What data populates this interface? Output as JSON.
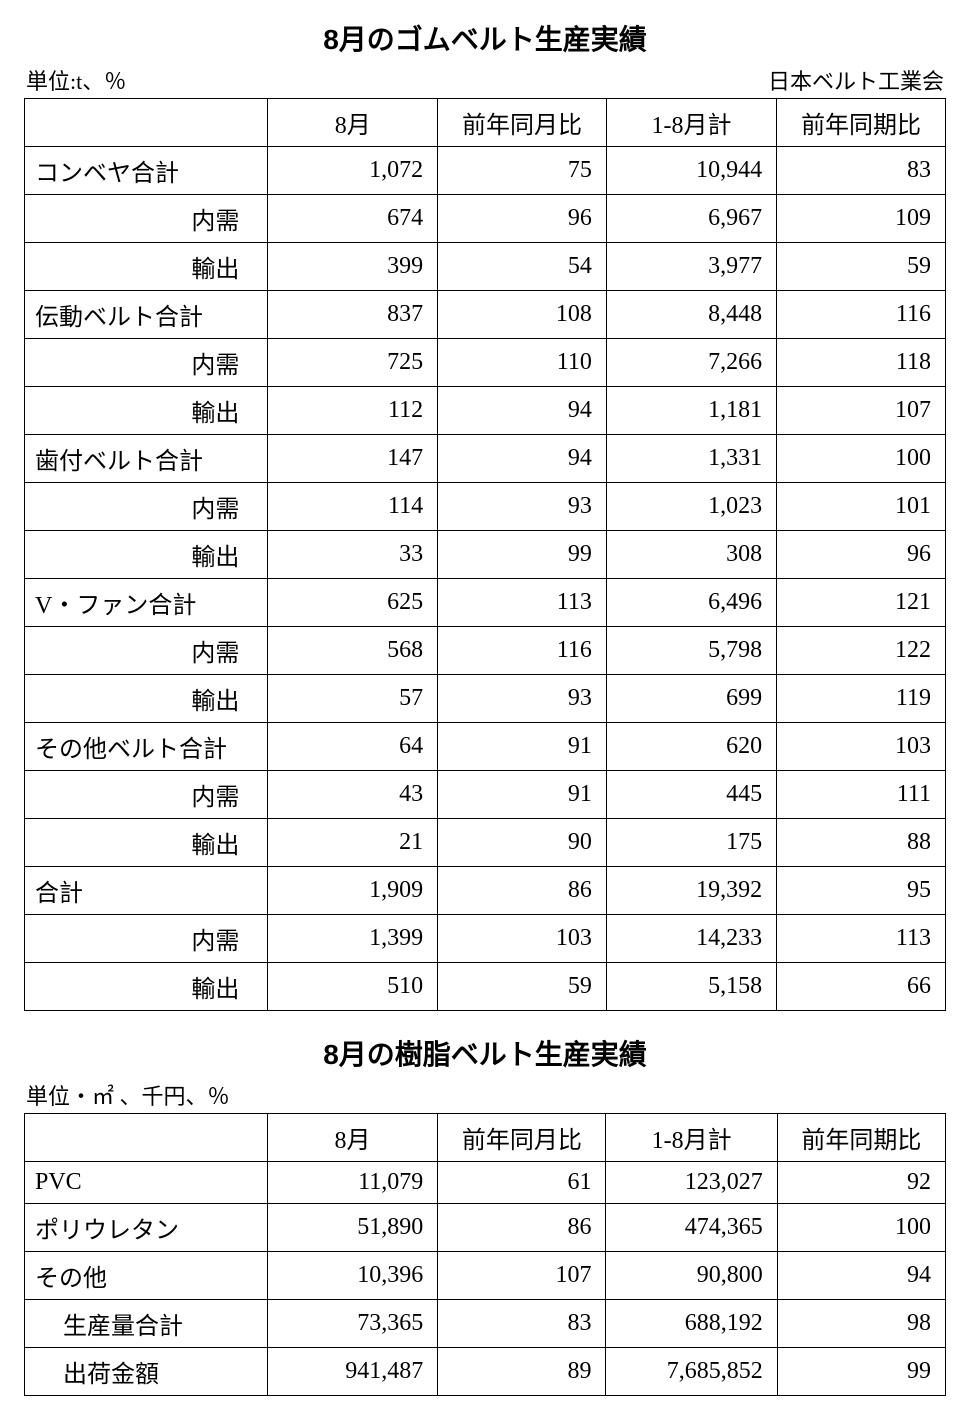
{
  "table1": {
    "title": "8月のゴムベルト生産実績",
    "unit": "単位:t、％",
    "source": "日本ベルト工業会",
    "columns": [
      "",
      "8月",
      "前年同月比",
      "1-8月計",
      "前年同期比"
    ],
    "rows": [
      {
        "label": "コンベヤ合計",
        "cls": "label-main",
        "vals": [
          "1,072",
          "75",
          "10,944",
          "83"
        ]
      },
      {
        "label": "内需",
        "cls": "label-sub",
        "vals": [
          "674",
          "96",
          "6,967",
          "109"
        ]
      },
      {
        "label": "輸出",
        "cls": "label-sub",
        "vals": [
          "399",
          "54",
          "3,977",
          "59"
        ]
      },
      {
        "label": "伝動ベルト合計",
        "cls": "label-main",
        "vals": [
          "837",
          "108",
          "8,448",
          "116"
        ]
      },
      {
        "label": "内需",
        "cls": "label-sub",
        "vals": [
          "725",
          "110",
          "7,266",
          "118"
        ]
      },
      {
        "label": "輸出",
        "cls": "label-sub",
        "vals": [
          "112",
          "94",
          "1,181",
          "107"
        ]
      },
      {
        "label": "歯付ベルト合計",
        "cls": "label-main",
        "vals": [
          "147",
          "94",
          "1,331",
          "100"
        ]
      },
      {
        "label": "内需",
        "cls": "label-sub",
        "vals": [
          "114",
          "93",
          "1,023",
          "101"
        ]
      },
      {
        "label": "輸出",
        "cls": "label-sub",
        "vals": [
          "33",
          "99",
          "308",
          "96"
        ]
      },
      {
        "label": "V・ファン合計",
        "cls": "label-main",
        "vals": [
          "625",
          "113",
          "6,496",
          "121"
        ]
      },
      {
        "label": "内需",
        "cls": "label-sub",
        "vals": [
          "568",
          "116",
          "5,798",
          "122"
        ]
      },
      {
        "label": "輸出",
        "cls": "label-sub",
        "vals": [
          "57",
          "93",
          "699",
          "119"
        ]
      },
      {
        "label": "その他ベルト合計",
        "cls": "label-main",
        "vals": [
          "64",
          "91",
          "620",
          "103"
        ]
      },
      {
        "label": "内需",
        "cls": "label-sub",
        "vals": [
          "43",
          "91",
          "445",
          "111"
        ]
      },
      {
        "label": "輸出",
        "cls": "label-sub",
        "vals": [
          "21",
          "90",
          "175",
          "88"
        ]
      },
      {
        "label": "合計",
        "cls": "label-main",
        "vals": [
          "1,909",
          "86",
          "19,392",
          "95"
        ]
      },
      {
        "label": "内需",
        "cls": "label-sub",
        "vals": [
          "1,399",
          "103",
          "14,233",
          "113"
        ]
      },
      {
        "label": "輸出",
        "cls": "label-sub",
        "vals": [
          "510",
          "59",
          "5,158",
          "66"
        ]
      }
    ]
  },
  "table2": {
    "title": "8月の樹脂ベルト生産実績",
    "unit": "単位・㎡ 、千円、％",
    "columns": [
      "",
      "8月",
      "前年同月比",
      "1-8月計",
      "前年同期比"
    ],
    "rows": [
      {
        "label": "PVC",
        "cls": "label-main",
        "vals": [
          "11,079",
          "61",
          "123,027",
          "92"
        ]
      },
      {
        "label": "ポリウレタン",
        "cls": "label-main",
        "vals": [
          "51,890",
          "86",
          "474,365",
          "100"
        ]
      },
      {
        "label": "その他",
        "cls": "label-main",
        "vals": [
          "10,396",
          "107",
          "90,800",
          "94"
        ]
      },
      {
        "label": "生産量合計",
        "cls": "label-sub2",
        "vals": [
          "73,365",
          "83",
          "688,192",
          "98"
        ]
      },
      {
        "label": "出荷金額",
        "cls": "label-sub2",
        "vals": [
          "941,487",
          "89",
          "7,685,852",
          "99"
        ]
      }
    ]
  }
}
